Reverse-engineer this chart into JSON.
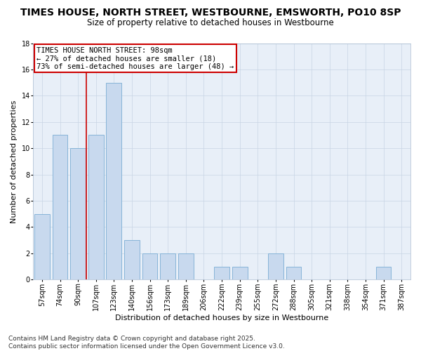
{
  "title": "TIMES HOUSE, NORTH STREET, WESTBOURNE, EMSWORTH, PO10 8SP",
  "subtitle": "Size of property relative to detached houses in Westbourne",
  "xlabel": "Distribution of detached houses by size in Westbourne",
  "ylabel": "Number of detached properties",
  "categories": [
    "57sqm",
    "74sqm",
    "90sqm",
    "107sqm",
    "123sqm",
    "140sqm",
    "156sqm",
    "173sqm",
    "189sqm",
    "206sqm",
    "222sqm",
    "239sqm",
    "255sqm",
    "272sqm",
    "288sqm",
    "305sqm",
    "321sqm",
    "338sqm",
    "354sqm",
    "371sqm",
    "387sqm"
  ],
  "values": [
    5,
    11,
    10,
    11,
    15,
    3,
    2,
    2,
    2,
    0,
    1,
    1,
    0,
    2,
    1,
    0,
    0,
    0,
    0,
    1,
    0
  ],
  "bar_color": "#c8d9ee",
  "bar_edge_color": "#7aadd4",
  "ref_line_color": "#cc0000",
  "annotation_line1": "TIMES HOUSE NORTH STREET: 98sqm",
  "annotation_line2": "← 27% of detached houses are smaller (18)",
  "annotation_line3": "73% of semi-detached houses are larger (48) →",
  "annotation_box_color": "#ffffff",
  "annotation_box_edge_color": "#cc0000",
  "ylim": [
    0,
    18
  ],
  "yticks": [
    0,
    2,
    4,
    6,
    8,
    10,
    12,
    14,
    16,
    18
  ],
  "footer": "Contains HM Land Registry data © Crown copyright and database right 2025.\nContains public sector information licensed under the Open Government Licence v3.0.",
  "title_fontsize": 10,
  "subtitle_fontsize": 8.5,
  "axis_label_fontsize": 8,
  "tick_fontsize": 7,
  "annotation_fontsize": 7.5,
  "footer_fontsize": 6.5,
  "bg_color": "#e8eff8"
}
